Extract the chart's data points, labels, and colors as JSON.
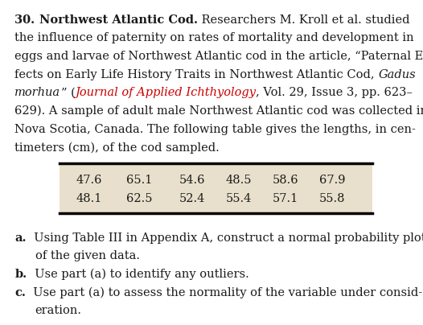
{
  "table_row1": [
    "47.6",
    "65.1",
    "54.6",
    "48.5",
    "58.6",
    "67.9"
  ],
  "table_row2": [
    "48.1",
    "62.5",
    "52.4",
    "55.4",
    "57.1",
    "55.8"
  ],
  "table_bg_color": "#e8e0cc",
  "journal_color": "#cc0000",
  "text_color": "#1a1a1a",
  "bg_color": "#ffffff",
  "font_size": 10.5,
  "lh": 0.056,
  "lm": 0.035,
  "fig_w": 526,
  "fig_h": 404
}
